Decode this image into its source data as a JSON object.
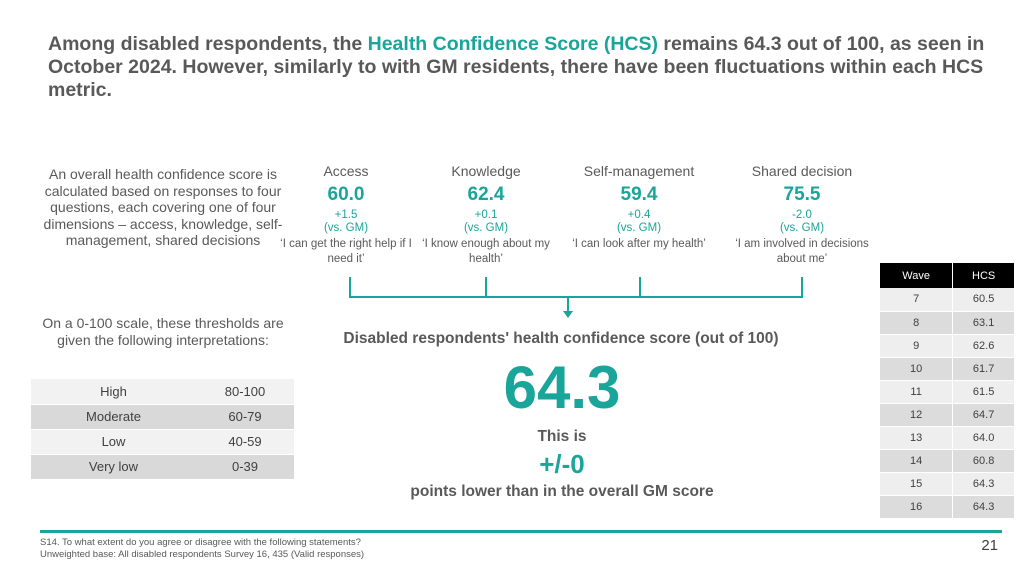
{
  "title": {
    "part1": "Among disabled respondents, the ",
    "highlight": "Health Confidence Score (HCS)",
    "part2": " remains 64.3 out of 100, as seen in October 2024. However, similarly to with GM residents, there have been fluctuations within each HCS metric."
  },
  "intro_text": "An overall health confidence score is calculated based on responses to four questions, each covering one of four dimensions – access, knowledge, self-management, shared decisions",
  "metrics": [
    {
      "name": "Access",
      "score": "60.0",
      "change": "+1.5",
      "vs": "(vs. GM)",
      "quote": "‘I can get the right help if I need it’"
    },
    {
      "name": "Knowledge",
      "score": "62.4",
      "change": "+0.1",
      "vs": "(vs. GM)",
      "quote": "‘I know enough about my health’"
    },
    {
      "name": "Self-management",
      "score": "59.4",
      "change": "+0.4",
      "vs": "(vs. GM)",
      "quote": "‘I can look after my health’"
    },
    {
      "name": "Shared decision",
      "score": "75.5",
      "change": "-2.0",
      "vs": "(vs. GM)",
      "quote": "‘I am involved in decisions about me’"
    }
  ],
  "scale_note": "On a 0-100 scale, these thresholds are given the following interpretations:",
  "scale_table": [
    {
      "level": "High",
      "range": "80-100"
    },
    {
      "level": "Moderate",
      "range": "60-79"
    },
    {
      "level": "Low",
      "range": "40-59"
    },
    {
      "level": "Very low",
      "range": "0-39"
    }
  ],
  "overall": {
    "label": "Disabled respondents' health confidence score (out of 100)",
    "value": "64.3",
    "this_is": "This is",
    "diff": "+/-0",
    "diff_note": "points lower than in the overall GM score"
  },
  "wave_table": {
    "headers": [
      "Wave",
      "HCS"
    ],
    "rows": [
      {
        "wave": "7",
        "hcs": "60.5"
      },
      {
        "wave": "8",
        "hcs": "63.1"
      },
      {
        "wave": "9",
        "hcs": "62.6"
      },
      {
        "wave": "10",
        "hcs": "61.7"
      },
      {
        "wave": "11",
        "hcs": "61.5"
      },
      {
        "wave": "12",
        "hcs": "64.7"
      },
      {
        "wave": "13",
        "hcs": "64.0"
      },
      {
        "wave": "14",
        "hcs": "60.8"
      },
      {
        "wave": "15",
        "hcs": "64.3"
      },
      {
        "wave": "16",
        "hcs": "64.3"
      }
    ]
  },
  "footer": {
    "line1": "S14. To what extent do you agree or disagree with the following statements?",
    "line2": "Unweighted base: All disabled respondents Survey 16, 435 (Valid responses)",
    "page_number": "21"
  },
  "colors": {
    "accent": "#1aa59a",
    "text": "#595959",
    "header_bg": "#000000"
  }
}
